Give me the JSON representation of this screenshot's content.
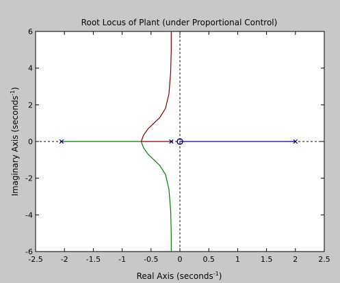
{
  "window": {
    "background": "#c8c8c8",
    "plot_background": "#ffffff"
  },
  "chart_data": {
    "type": "line",
    "title": "Root Locus of Plant (under Proportional Control)",
    "xlabel_main": "Real Axis (seconds",
    "xlabel_sup": "-1",
    "xlabel_close": ")",
    "ylabel_main": "Imaginary Axis (seconds",
    "ylabel_sup": "-1",
    "ylabel_close": ")",
    "xlim": [
      -2.5,
      2.5
    ],
    "ylim": [
      -6,
      6
    ],
    "xticks": [
      -2.5,
      -2,
      -1.5,
      -1,
      -0.5,
      0,
      0.5,
      1,
      1.5,
      2,
      2.5
    ],
    "xtick_labels": [
      "-2.5",
      "-2",
      "-1.5",
      "-1",
      "-0.5",
      "0",
      "0.5",
      "1",
      "1.5",
      "2",
      "2.5"
    ],
    "yticks": [
      -6,
      -4,
      -2,
      0,
      2,
      4,
      6
    ],
    "ytick_labels": [
      "-6",
      "-4",
      "-2",
      "0",
      "2",
      "4",
      "6"
    ],
    "grid": false,
    "reference_lines": {
      "color": "#000000",
      "style": "dashed",
      "x_zero": true,
      "y_zero": true
    },
    "poles": [
      {
        "x": -2.05,
        "y": 0
      },
      {
        "x": -0.15,
        "y": 0
      },
      {
        "x": 2.0,
        "y": 0
      }
    ],
    "zeros": [
      {
        "x": 0.0,
        "y": 0
      }
    ],
    "marker_color": "#00007f",
    "series": [
      {
        "color": "#007f00",
        "x": [
          -2.05,
          -1.6,
          -1.2,
          -0.9,
          -0.75,
          -0.67
        ],
        "y": [
          0,
          0,
          0,
          0,
          0,
          0
        ]
      },
      {
        "color": "#7f0000",
        "x": [
          -0.15,
          -0.3,
          -0.45,
          -0.58,
          -0.67
        ],
        "y": [
          0,
          0,
          0,
          0,
          0
        ]
      },
      {
        "color": "#7f0000",
        "x": [
          -0.67,
          -0.63,
          -0.55,
          -0.45,
          -0.35,
          -0.25,
          -0.19,
          -0.16,
          -0.15,
          -0.15
        ],
        "y": [
          0,
          0.35,
          0.7,
          1.0,
          1.3,
          1.8,
          2.6,
          3.8,
          5.0,
          6.0
        ]
      },
      {
        "color": "#007f00",
        "x": [
          -0.67,
          -0.63,
          -0.55,
          -0.45,
          -0.35,
          -0.25,
          -0.19,
          -0.16,
          -0.15,
          -0.15
        ],
        "y": [
          0,
          -0.35,
          -0.7,
          -1.0,
          -1.3,
          -1.8,
          -2.6,
          -3.8,
          -5.0,
          -6.0
        ]
      },
      {
        "color": "#00007f",
        "x": [
          2.0,
          1.5,
          1.0,
          0.5,
          0.0
        ],
        "y": [
          0,
          0,
          0,
          0,
          0
        ]
      }
    ]
  }
}
